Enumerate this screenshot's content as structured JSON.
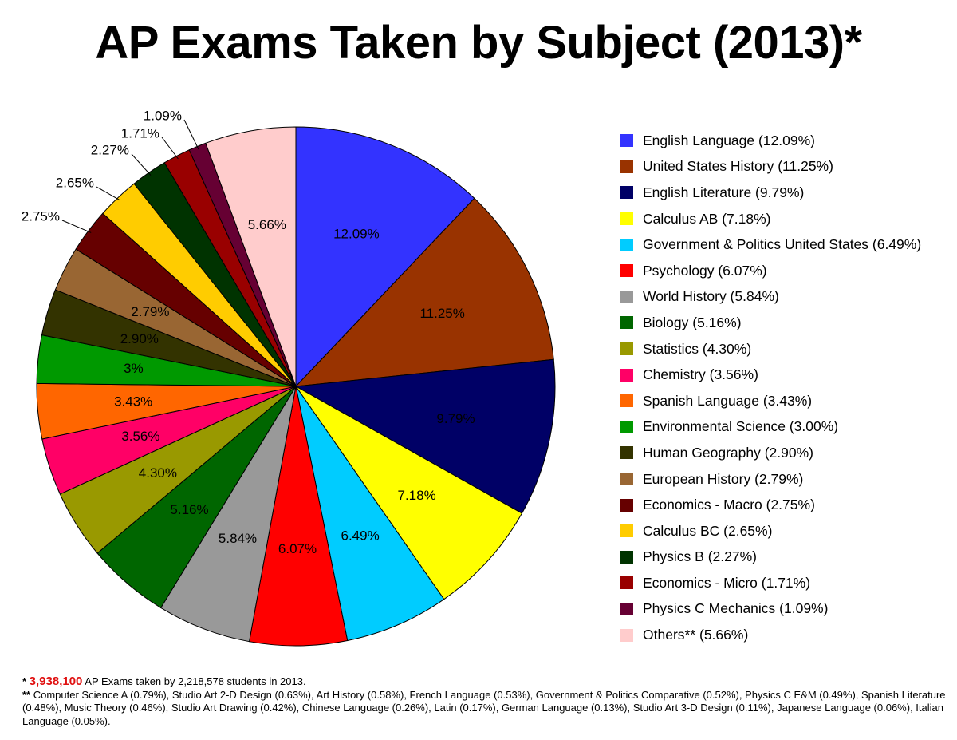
{
  "title": "AP Exams Taken by Subject (2013)*",
  "colors": {
    "highlight": "#e01010"
  },
  "chart_data": {
    "type": "pie",
    "title": "AP Exams Taken by Subject (2013)*",
    "legend_position": "right",
    "start": "top, clockwise",
    "slices": [
      {
        "name": "English Language",
        "legend_label": "English Language (12.09%)",
        "value": 12.09,
        "label": "12.09%",
        "color": "#3333ff",
        "label_inside": true
      },
      {
        "name": "United States History",
        "legend_label": "United States History (11.25%)",
        "value": 11.25,
        "label": "11.25%",
        "color": "#993300",
        "label_inside": true
      },
      {
        "name": "English Literature",
        "legend_label": "English Literature (9.79%)",
        "value": 9.79,
        "label": "9.79%",
        "color": "#000066",
        "label_inside": true
      },
      {
        "name": "Calculus AB",
        "legend_label": "Calculus AB (7.18%)",
        "value": 7.18,
        "label": "7.18%",
        "color": "#ffff00",
        "label_inside": true
      },
      {
        "name": "Government & Politics United States",
        "legend_label": "Government & Politics United States (6.49%)",
        "value": 6.49,
        "label": "6.49%",
        "color": "#00ccff",
        "label_inside": true
      },
      {
        "name": "Psychology",
        "legend_label": "Psychology (6.07%)",
        "value": 6.07,
        "label": "6.07%",
        "color": "#ff0000",
        "label_inside": true
      },
      {
        "name": "World History",
        "legend_label": "World History (5.84%)",
        "value": 5.84,
        "label": "5.84%",
        "color": "#999999",
        "label_inside": true
      },
      {
        "name": "Biology",
        "legend_label": "Biology (5.16%)",
        "value": 5.16,
        "label": "5.16%",
        "color": "#006600",
        "label_inside": true
      },
      {
        "name": "Statistics",
        "legend_label": "Statistics (4.30%)",
        "value": 4.3,
        "label": "4.30%",
        "color": "#999900",
        "label_inside": true
      },
      {
        "name": "Chemistry",
        "legend_label": "Chemistry (3.56%)",
        "value": 3.56,
        "label": "3.56%",
        "color": "#ff0066",
        "label_inside": true
      },
      {
        "name": "Spanish Language",
        "legend_label": "Spanish Language (3.43%)",
        "value": 3.43,
        "label": "3.43%",
        "color": "#ff6600",
        "label_inside": true
      },
      {
        "name": "Environmental Science",
        "legend_label": "Environmental Science (3.00%)",
        "value": 3.0,
        "label": "3%",
        "color": "#009900",
        "label_inside": true
      },
      {
        "name": "Human Geography",
        "legend_label": "Human Geography (2.90%)",
        "value": 2.9,
        "label": "2.90%",
        "color": "#333300",
        "label_inside": true
      },
      {
        "name": "European History",
        "legend_label": "European History (2.79%)",
        "value": 2.79,
        "label": "2.79%",
        "color": "#996633",
        "label_inside": true
      },
      {
        "name": "Economics - Macro",
        "legend_label": "Economics - Macro (2.75%)",
        "value": 2.75,
        "label": "2.75%",
        "color": "#660000",
        "label_inside": false
      },
      {
        "name": "Calculus BC",
        "legend_label": "Calculus BC (2.65%)",
        "value": 2.65,
        "label": "2.65%",
        "color": "#ffcc00",
        "label_inside": false
      },
      {
        "name": "Physics B",
        "legend_label": "Physics B (2.27%)",
        "value": 2.27,
        "label": "2.27%",
        "color": "#003300",
        "label_inside": false
      },
      {
        "name": "Economics - Micro",
        "legend_label": "Economics - Micro (1.71%)",
        "value": 1.71,
        "label": "1.71%",
        "color": "#990000",
        "label_inside": false
      },
      {
        "name": "Physics C Mechanics",
        "legend_label": "Physics C Mechanics (1.09%)",
        "value": 1.09,
        "label": "1.09%",
        "color": "#660033",
        "label_inside": false
      },
      {
        "name": "Others",
        "legend_label": "Others** (5.66%)",
        "value": 5.66,
        "label": "5.66%",
        "color": "#ffcccc",
        "label_inside": true
      }
    ]
  },
  "footnotes": {
    "line1_prefix": "* ",
    "line1_highlight": "3,938,100",
    "line1_text": " AP Exams taken by 2,218,578 students in 2013.",
    "line2_prefix": "** ",
    "line2_text": "Computer Science A (0.79%), Studio Art 2-D Design (0.63%), Art History (0.58%), French Language (0.53%), Government & Politics Comparative (0.52%), Physics C E&M (0.49%), Spanish Literature (0.48%), Music Theory (0.46%), Studio Art Drawing (0.42%), Chinese Language (0.26%), Latin (0.17%), German Language (0.13%), Studio Art 3-D Design (0.11%), Japanese Language (0.06%), Italian Language (0.05%)."
  }
}
